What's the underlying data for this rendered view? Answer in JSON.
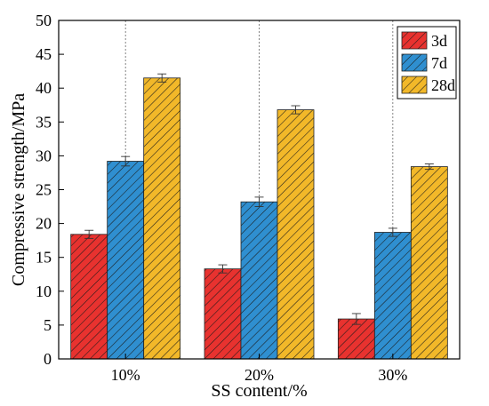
{
  "chart_data": {
    "type": "bar",
    "title": "",
    "xlabel": "SS content/%",
    "ylabel": "Compressive strength/MPa",
    "categories": [
      "10%",
      "20%",
      "30%"
    ],
    "ylim": [
      0,
      50
    ],
    "yticks": [
      0,
      5,
      10,
      15,
      20,
      25,
      30,
      35,
      40,
      45,
      50
    ],
    "grid": "vertical dashed lines at category centers",
    "legend_position": "top-right",
    "hatch": "diagonal",
    "series": [
      {
        "name": "3d",
        "color": "#e8322f",
        "values": [
          18.4,
          13.3,
          5.9
        ],
        "errors": [
          0.6,
          0.6,
          0.8
        ]
      },
      {
        "name": "7d",
        "color": "#2f8fd0",
        "values": [
          29.2,
          23.2,
          18.7
        ],
        "errors": [
          0.7,
          0.7,
          0.6
        ]
      },
      {
        "name": "28d",
        "color": "#f2b829",
        "values": [
          41.5,
          36.8,
          28.4
        ],
        "errors": [
          0.6,
          0.6,
          0.4
        ]
      }
    ]
  }
}
